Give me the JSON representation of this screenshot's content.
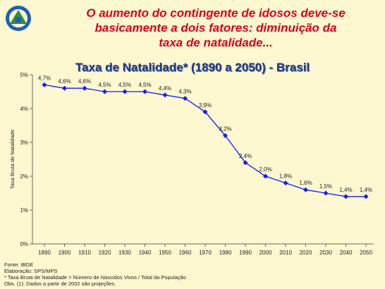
{
  "headline": {
    "line1": "O aumento do contingente de idosos deve-se",
    "line2": "basicamente a dois fatores: diminuição da",
    "line3": "taxa de natalidade..."
  },
  "logo": {
    "icon": "inss-logo-icon",
    "colors": [
      "#1f5fb8",
      "#2f8f3a"
    ]
  },
  "footnotes": [
    "Fonte: IBGE",
    "Elaboração: SPS/MPS",
    "* Taxa Bruta de Natalidade = Número de Nascidos Vivos / Total da População",
    "Obs. (1): Dados a partir de 2002 são projeções."
  ],
  "chart_data": {
    "type": "line",
    "title": "Taxa de Natalidade* (1890 a 2050) - Brasil",
    "ylabel": "Taxa Bruta de Natalidade",
    "xlabel": "",
    "categories": [
      "1890",
      "1900",
      "1910",
      "1920",
      "1930",
      "1940",
      "1950",
      "1960",
      "1970",
      "1980",
      "1990",
      "2000",
      "2010",
      "2020",
      "2030",
      "2040",
      "2050"
    ],
    "series": [
      {
        "values": [
          4.7,
          4.6,
          4.6,
          4.5,
          4.5,
          4.5,
          4.4,
          4.3,
          3.9,
          3.2,
          2.4,
          2.0,
          1.8,
          1.6,
          1.5,
          1.4,
          1.4
        ],
        "labels": [
          "4,7%",
          "4,6%",
          "4,6%",
          "4,5%",
          "4,5%",
          "4,5%",
          "4,4%",
          "4,3%",
          "3,9%",
          "3,2%",
          "2,4%",
          "2,0%",
          "1,8%",
          "1,6%",
          "1,5%",
          "1,4%",
          "1,4%"
        ],
        "color": "#1a1aff"
      }
    ],
    "yticks": [
      "0%",
      "1%",
      "2%",
      "3%",
      "4%",
      "5%"
    ],
    "ylim": [
      0,
      5
    ],
    "grid": false,
    "colors": {
      "title": "#1f3a93",
      "headline": "#d9001b",
      "line": "#1a1aff",
      "axis": "#666666"
    }
  }
}
